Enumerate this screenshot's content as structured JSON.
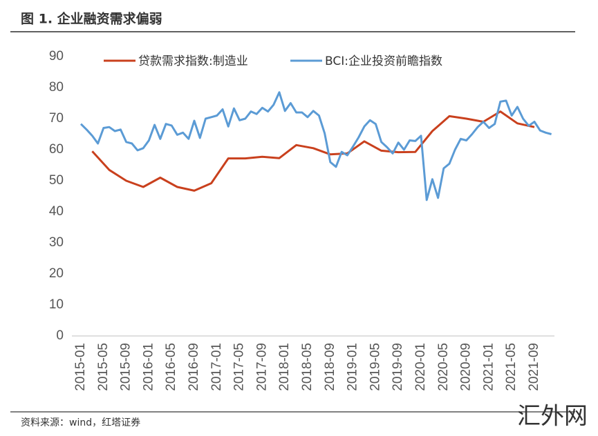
{
  "chart_data": {
    "type": "line",
    "title": "图 1. 企业融资需求偏弱",
    "source": "资料来源：wind，红塔证券",
    "watermark": "汇外网",
    "categories": [
      "2015-01",
      null,
      null,
      null,
      "2015-05",
      null,
      null,
      null,
      "2015-09",
      null,
      null,
      null,
      "2016-01",
      null,
      null,
      null,
      "2016-05",
      null,
      null,
      null,
      "2016-09",
      null,
      null,
      null,
      "2017-01",
      null,
      null,
      null,
      "2017-05",
      null,
      null,
      null,
      "2017-09",
      null,
      null,
      null,
      "2018-01",
      null,
      null,
      null,
      "2018-05",
      null,
      null,
      null,
      "2018-09",
      null,
      null,
      null,
      "2019-01",
      null,
      null,
      null,
      "2019-05",
      null,
      null,
      null,
      "2019-09",
      null,
      null,
      null,
      "2020-01",
      null,
      null,
      null,
      "2020-05",
      null,
      null,
      null,
      "2020-09",
      null,
      null,
      null,
      "2021-01",
      null,
      null,
      null,
      "2021-05",
      null,
      null,
      null,
      "2021-09",
      null,
      null,
      null
    ],
    "series": [
      {
        "name": "贷款需求指数:制造业",
        "color": "#c9401d",
        "x": [
          "2015-03",
          "2015-06",
          "2015-09",
          "2015-12",
          "2016-03",
          "2016-06",
          "2016-09",
          "2016-12",
          "2017-03",
          "2017-06",
          "2017-09",
          "2017-12",
          "2018-03",
          "2018-06",
          "2018-09",
          "2018-12",
          "2019-03",
          "2019-06",
          "2019-09",
          "2019-12",
          "2020-03",
          "2020-06",
          "2020-09",
          "2020-12",
          "2021-03",
          "2021-06",
          "2021-09"
        ],
        "values": [
          59.5,
          53.5,
          50,
          48,
          51,
          48,
          46.8,
          49.2,
          57.2,
          57.2,
          57.7,
          57.3,
          61.5,
          60.5,
          58.5,
          58.8,
          62.7,
          59.7,
          59.2,
          59.3,
          66,
          70.8,
          70,
          69,
          72.3,
          68.5,
          67.3
        ]
      },
      {
        "name": "BCI:企业投资前瞻指数",
        "color": "#5b9bd5",
        "values": [
          68.3,
          66.5,
          64.5,
          62,
          67,
          67.3,
          66,
          66.5,
          62.5,
          62,
          59.8,
          60.5,
          63,
          68,
          63.5,
          68.3,
          67.8,
          64.8,
          65.5,
          63.5,
          69.3,
          63.8,
          70,
          70.5,
          71,
          73,
          67.5,
          73.3,
          69.5,
          70,
          72.3,
          71.5,
          73.5,
          72.3,
          74.5,
          78.5,
          72.5,
          75,
          72,
          72,
          70.5,
          72.5,
          71,
          65.3,
          56,
          54.5,
          59.3,
          58.2,
          61,
          64,
          67.5,
          69.5,
          68.3,
          62.5,
          60.8,
          58.8,
          62.3,
          60,
          63,
          62.8,
          64.5,
          43.8,
          50.5,
          44.5,
          54,
          55.5,
          60,
          63.5,
          63,
          65,
          67.3,
          69,
          67,
          68.3,
          75.5,
          75.8,
          71,
          73.8,
          70,
          67.7,
          69,
          66.2,
          65.5,
          65
        ]
      }
    ],
    "ylim": [
      0,
      90
    ],
    "yticks": [
      0,
      10,
      20,
      30,
      40,
      50,
      60,
      70,
      80,
      90
    ],
    "grid": false
  }
}
